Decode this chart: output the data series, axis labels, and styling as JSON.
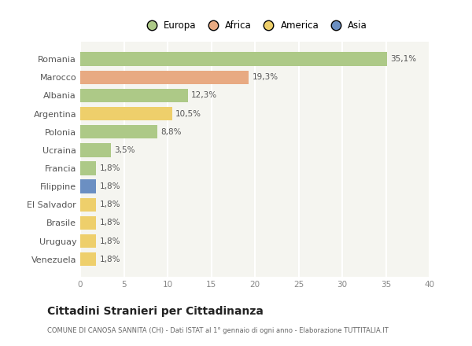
{
  "categories": [
    "Romania",
    "Marocco",
    "Albania",
    "Argentina",
    "Polonia",
    "Ucraina",
    "Francia",
    "Filippine",
    "El Salvador",
    "Brasile",
    "Uruguay",
    "Venezuela"
  ],
  "values": [
    35.1,
    19.3,
    12.3,
    10.5,
    8.8,
    3.5,
    1.8,
    1.8,
    1.8,
    1.8,
    1.8,
    1.8
  ],
  "labels": [
    "35,1%",
    "19,3%",
    "12,3%",
    "10,5%",
    "8,8%",
    "3,5%",
    "1,8%",
    "1,8%",
    "1,8%",
    "1,8%",
    "1,8%",
    "1,8%"
  ],
  "colors": [
    "#adc987",
    "#e8aa82",
    "#adc987",
    "#eecf6b",
    "#adc987",
    "#adc987",
    "#adc987",
    "#6b8fc2",
    "#eecf6b",
    "#eecf6b",
    "#eecf6b",
    "#eecf6b"
  ],
  "legend_labels": [
    "Europa",
    "Africa",
    "America",
    "Asia"
  ],
  "legend_colors": [
    "#adc987",
    "#e8aa82",
    "#eecf6b",
    "#6b8fc2"
  ],
  "title": "Cittadini Stranieri per Cittadinanza",
  "subtitle": "COMUNE DI CANOSA SANNITA (CH) - Dati ISTAT al 1° gennaio di ogni anno - Elaborazione TUTTITALIA.IT",
  "xlim": [
    0,
    40
  ],
  "xticks": [
    0,
    5,
    10,
    15,
    20,
    25,
    30,
    35,
    40
  ],
  "background_color": "#ffffff",
  "plot_bg_color": "#f5f5f0",
  "grid_color": "#ffffff",
  "bar_height": 0.75
}
